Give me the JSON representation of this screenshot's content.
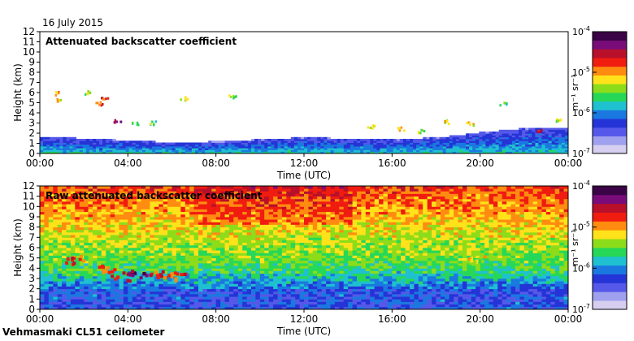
{
  "date_label": "16 July 2015",
  "instrument_label": "Vehmasmaki CL51 ceilometer",
  "colormap": [
    "#d7cff0",
    "#9fa0ee",
    "#5558e8",
    "#2434d6",
    "#1a78e0",
    "#1fc0d0",
    "#27d858",
    "#8ddc1a",
    "#ffe21a",
    "#ff8c10",
    "#f01c10",
    "#b8102a",
    "#7a0c7a",
    "#3a0446"
  ],
  "chart_data": [
    {
      "type": "heatmap",
      "title": "Attenuated backscatter coefficient",
      "xlabel": "Time (UTC)",
      "ylabel": "Height (km)",
      "xticks": [
        "00:00",
        "04:00",
        "08:00",
        "12:00",
        "16:00",
        "20:00",
        "00:00"
      ],
      "xlim_hours": [
        0,
        24
      ],
      "ylim": [
        0,
        12
      ],
      "yticks": [
        0,
        1,
        2,
        3,
        4,
        5,
        6,
        7,
        8,
        9,
        10,
        11,
        12
      ],
      "colorbar": {
        "label": "m⁻¹ sr⁻¹",
        "scale": "log",
        "range": [
          1e-07,
          0.0001
        ],
        "tick_labels": [
          {
            "base": "10",
            "exp": "-4"
          },
          {
            "base": "10",
            "exp": "-5"
          },
          {
            "base": "10",
            "exp": "-6"
          },
          {
            "base": "10",
            "exp": "-7"
          }
        ]
      },
      "features": {
        "boundary_layer_top_km": [
          [
            0,
            1.6
          ],
          [
            2,
            1.4
          ],
          [
            4,
            1.2
          ],
          [
            6,
            1.0
          ],
          [
            8,
            1.1
          ],
          [
            10,
            1.3
          ],
          [
            12,
            1.5
          ],
          [
            14,
            1.4
          ],
          [
            16,
            1.3
          ],
          [
            18,
            1.5
          ],
          [
            20,
            2.0
          ],
          [
            22,
            2.4
          ],
          [
            24,
            2.5
          ]
        ],
        "cloud_patches": [
          {
            "t": 0.7,
            "h": 6.0,
            "intensity": 0.62
          },
          {
            "t": 0.8,
            "h": 5.3,
            "intensity": 0.6
          },
          {
            "t": 2.2,
            "h": 6.1,
            "intensity": 0.55
          },
          {
            "t": 2.7,
            "h": 5.0,
            "intensity": 0.7
          },
          {
            "t": 2.9,
            "h": 5.6,
            "intensity": 0.75
          },
          {
            "t": 3.5,
            "h": 3.3,
            "intensity": 0.82
          },
          {
            "t": 4.3,
            "h": 3.0,
            "intensity": 0.55
          },
          {
            "t": 5.1,
            "h": 3.1,
            "intensity": 0.5
          },
          {
            "t": 6.5,
            "h": 5.5,
            "intensity": 0.55
          },
          {
            "t": 8.7,
            "h": 5.7,
            "intensity": 0.5
          },
          {
            "t": 15.0,
            "h": 2.7,
            "intensity": 0.62
          },
          {
            "t": 16.4,
            "h": 2.5,
            "intensity": 0.6
          },
          {
            "t": 17.3,
            "h": 2.3,
            "intensity": 0.55
          },
          {
            "t": 18.4,
            "h": 3.2,
            "intensity": 0.6
          },
          {
            "t": 19.5,
            "h": 3.0,
            "intensity": 0.62
          },
          {
            "t": 21.0,
            "h": 5.0,
            "intensity": 0.5
          },
          {
            "t": 22.6,
            "h": 2.4,
            "intensity": 0.8
          },
          {
            "t": 23.6,
            "h": 3.3,
            "intensity": 0.55
          }
        ]
      }
    },
    {
      "type": "heatmap",
      "title": "Raw attenuated backscatter coefficient",
      "xlabel": "Time (UTC)",
      "ylabel": "Height (km)",
      "xticks": [
        "00:00",
        "04:00",
        "08:00",
        "12:00",
        "16:00",
        "20:00",
        "00:00"
      ],
      "xlim_hours": [
        0,
        24
      ],
      "ylim": [
        0,
        12
      ],
      "yticks": [
        0,
        1,
        2,
        3,
        4,
        5,
        6,
        7,
        8,
        9,
        10,
        11,
        12
      ],
      "colorbar": {
        "label": "m⁻¹ sr⁻¹",
        "scale": "log",
        "range": [
          1e-07,
          0.0001
        ],
        "tick_labels": [
          {
            "base": "10",
            "exp": "-4"
          },
          {
            "base": "10",
            "exp": "-5"
          },
          {
            "base": "10",
            "exp": "-6"
          },
          {
            "base": "10",
            "exp": "-7"
          }
        ]
      },
      "features": {
        "aerosol_layer": [
          {
            "t": 1.5,
            "h": 4.9,
            "intensity": 0.72
          },
          {
            "t": 3.0,
            "h": 4.0,
            "intensity": 0.7
          },
          {
            "t": 3.6,
            "h": 3.3,
            "intensity": 0.85
          },
          {
            "t": 4.4,
            "h": 3.6,
            "intensity": 0.9
          },
          {
            "t": 5.2,
            "h": 3.4,
            "intensity": 0.78
          },
          {
            "t": 6.2,
            "h": 3.3,
            "intensity": 0.72
          },
          {
            "t": 19.7,
            "h": 5.0,
            "intensity": 0.6
          }
        ]
      }
    }
  ]
}
